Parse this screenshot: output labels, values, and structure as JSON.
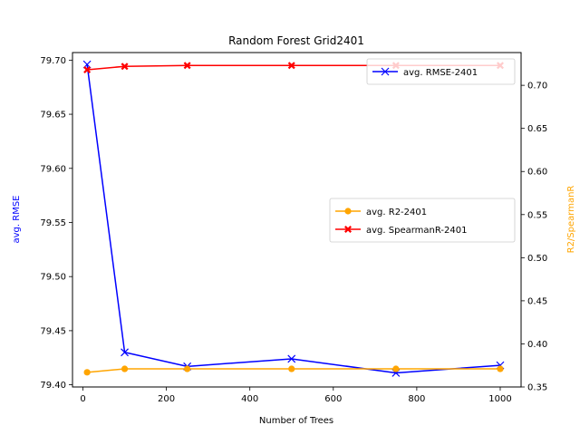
{
  "chart_data": {
    "type": "line",
    "title": "Random Forest Grid2401",
    "xlabel": "Number of Trees",
    "ylabel_left": "avg. RMSE",
    "ylabel_right": "R2/SpearmanR",
    "xlim": [
      -25,
      1050
    ],
    "ylim_left": [
      79.398,
      79.707
    ],
    "ylim_right": [
      0.35,
      0.738
    ],
    "xticks": [
      0,
      200,
      400,
      600,
      800,
      1000
    ],
    "yticks_left": [
      79.4,
      79.45,
      79.5,
      79.55,
      79.6,
      79.65,
      79.7
    ],
    "yticks_right": [
      0.35,
      0.4,
      0.45,
      0.5,
      0.55,
      0.6,
      0.65,
      0.7
    ],
    "x": [
      10,
      100,
      250,
      500,
      750,
      1000
    ],
    "series": [
      {
        "name": "avg. RMSE-2401",
        "axis": "left",
        "color": "#0000ff",
        "marker": "x",
        "values": [
          79.696,
          79.43,
          79.417,
          79.424,
          79.411,
          79.418
        ]
      },
      {
        "name": "avg. R2-2401",
        "axis": "right",
        "color": "#ffa500",
        "marker": "o",
        "values": [
          0.367,
          0.371,
          0.371,
          0.371,
          0.371,
          0.371
        ]
      },
      {
        "name": "avg. SpearmanR-2401",
        "axis": "right",
        "color": "#ff0000",
        "marker": "X",
        "values": [
          0.718,
          0.722,
          0.723,
          0.723,
          0.723,
          0.723
        ]
      }
    ],
    "colors": {
      "left_label": "#0000ff",
      "right_label": "#ffa500"
    },
    "grid": false,
    "legend_left_axis": "top-right",
    "legend_right_axis": "center-right"
  }
}
